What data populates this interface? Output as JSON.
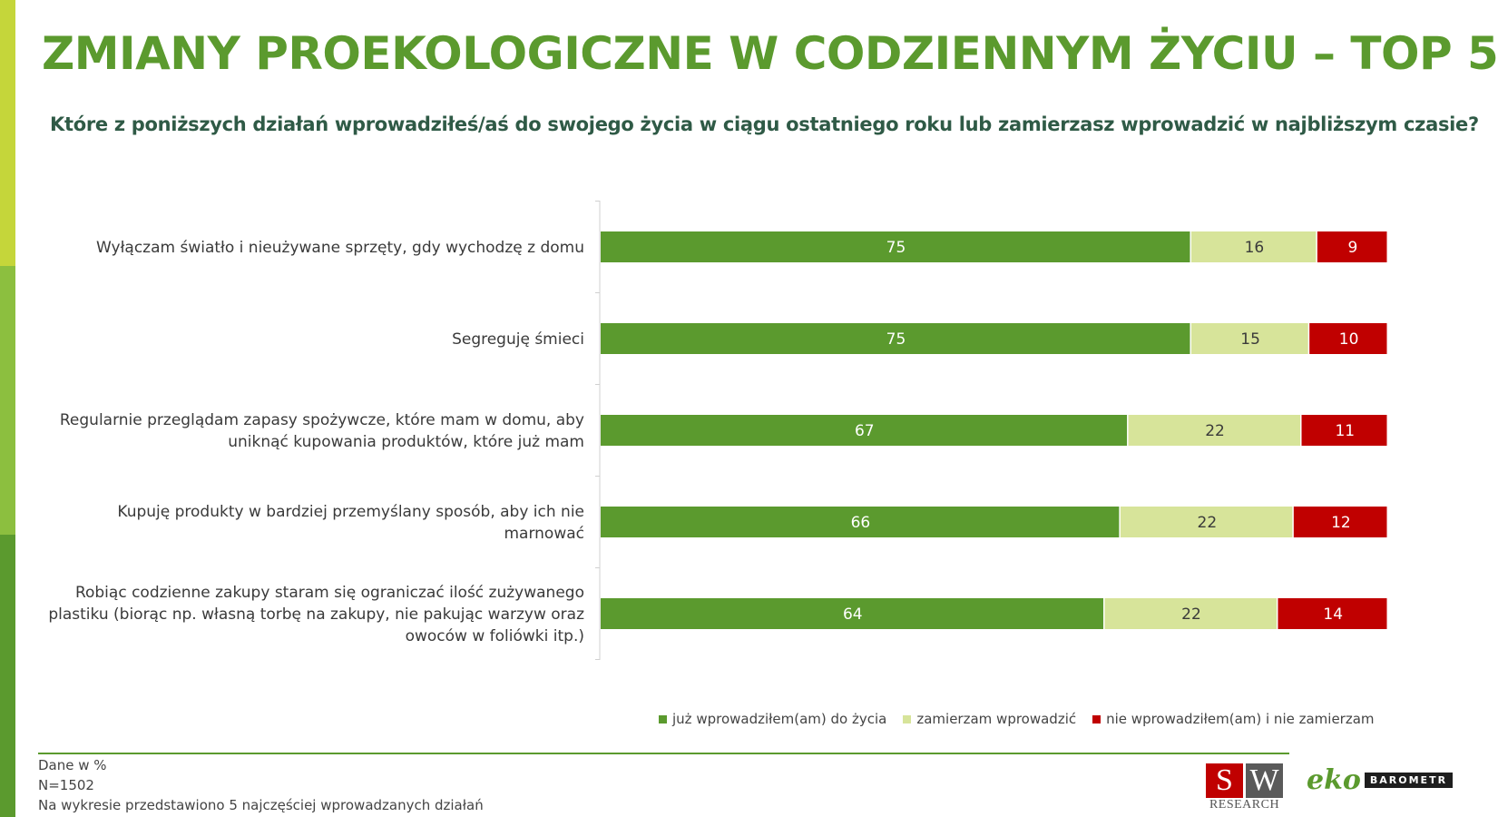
{
  "title": "ZMIANY PROEKOLOGICZNE W CODZIENNYM ŻYCIU – TOP 5",
  "subtitle": "Które z poniższych działań wprowadziłeś/aś do swojego życia w ciągu ostatniego roku lub zamierzasz wprowadzić w najbliższym czasie?",
  "colors": {
    "accent": "#5b9a2e",
    "subtitle": "#2f5a46",
    "stripe": [
      "#c5d63a",
      "#8cbf3f",
      "#5b9a2e"
    ]
  },
  "chart_data": {
    "type": "bar",
    "orientation": "horizontal",
    "stacked": true,
    "categories": [
      [
        "Wyłączam światło i nieużywane sprzęty,  gdy wychodzę z domu"
      ],
      [
        "Segreguję śmieci"
      ],
      [
        "Regularnie przeglądam zapasy spożywcze, które mam w domu, aby",
        "uniknąć kupowania produktów, które już mam"
      ],
      [
        "Kupuję produkty w bardziej przemyślany sposób, aby ich nie",
        "marnować"
      ],
      [
        "Robiąc codzienne zakupy staram się ograniczać ilość zużywanego",
        "plastiku (biorąc np. własną torbę na zakupy, nie pakując warzyw oraz",
        "owoców w foliówki itp.)"
      ]
    ],
    "series": [
      {
        "name": "już wprowadziłem(am) do życia",
        "color": "#5b9a2e",
        "label_color": "#ffffff",
        "values": [
          75,
          75,
          67,
          66,
          64
        ]
      },
      {
        "name": "zamierzam wprowadzić",
        "color": "#d7e49a",
        "label_color": "#3a3a3a",
        "values": [
          16,
          15,
          22,
          22,
          22
        ]
      },
      {
        "name": "nie wprowadziłem(am) i nie zamierzam",
        "color": "#c00000",
        "label_color": "#ffffff",
        "values": [
          9,
          10,
          11,
          12,
          14
        ]
      }
    ],
    "xlim": [
      0,
      100
    ],
    "legend_position": "bottom-right",
    "grid": false
  },
  "notes": [
    "Dane w %",
    "N=1502",
    "Na wykresie przedstawiono 5 najczęściej wprowadzanych działań"
  ],
  "logos": {
    "sw_letters": [
      "S",
      "W"
    ],
    "sw_subtitle": "RESEARCH",
    "eko_script": "eko",
    "eko_badge": "BAROMETR"
  }
}
